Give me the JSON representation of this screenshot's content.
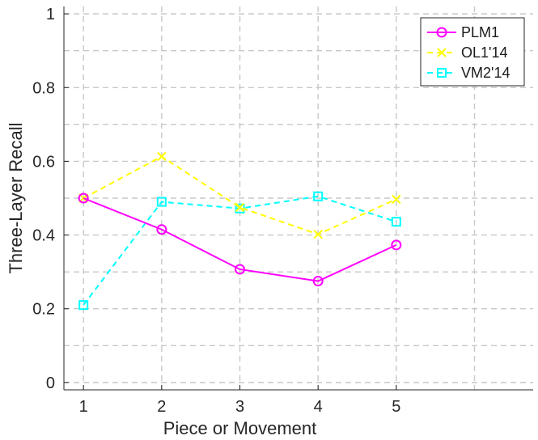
{
  "chart_data": {
    "type": "line",
    "xlabel": "Piece or Movement",
    "ylabel": "Three-Layer Recall",
    "xlim": [
      0.75,
      6.75
    ],
    "ylim": [
      -0.02,
      1.02
    ],
    "x": [
      1,
      2,
      3,
      4,
      5
    ],
    "xticks": [
      "1",
      "2",
      "3",
      "4",
      "5"
    ],
    "yticks": [
      "0",
      "0.2",
      "0.4",
      "0.6",
      "0.8",
      "1"
    ],
    "grid": true,
    "legend_position": "top-right",
    "series": [
      {
        "name": "PLM1",
        "values": [
          0.5,
          0.415,
          0.307,
          0.275,
          0.373
        ],
        "color": "#ff00ff",
        "line_style": "solid",
        "marker": "circle"
      },
      {
        "name": "OL1'14",
        "values": [
          0.5,
          0.613,
          0.475,
          0.402,
          0.497
        ],
        "color": "#ffff00",
        "line_style": "dashed",
        "marker": "x"
      },
      {
        "name": "VM2'14",
        "values": [
          0.21,
          0.49,
          0.472,
          0.505,
          0.436
        ],
        "color": "#00ffff",
        "line_style": "dashed",
        "marker": "square"
      }
    ]
  }
}
